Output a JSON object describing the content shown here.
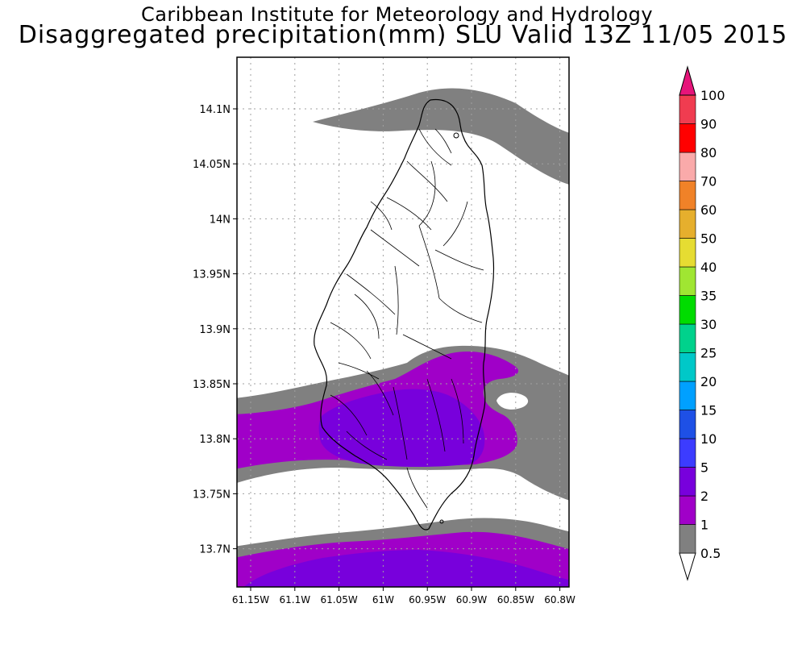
{
  "title": {
    "line1": "Caribbean Institute for Meteorology and Hydrology",
    "line2": "Disaggregated precipitation(mm) SLU Valid 13Z 11/05 2015"
  },
  "map": {
    "lat_labels": [
      "14.1N",
      "14.05N",
      "14N",
      "13.95N",
      "13.9N",
      "13.85N",
      "13.8N",
      "13.75N",
      "13.7N"
    ],
    "lon_labels": [
      "61.15W",
      "61.1W",
      "61.05W",
      "61W",
      "60.95W",
      "60.9W",
      "60.85W",
      "60.8W"
    ],
    "colors": {
      "gray": "#808080",
      "magenta": "#a000c8",
      "violet": "#7800dc"
    }
  },
  "legend": {
    "entries": [
      {
        "label": "0.5",
        "color": "#ffffff"
      },
      {
        "label": "1",
        "color": "#808080"
      },
      {
        "label": "2",
        "color": "#a000c8"
      },
      {
        "label": "5",
        "color": "#7800dc"
      },
      {
        "label": "10",
        "color": "#3c3cff"
      },
      {
        "label": "15",
        "color": "#1e50e6"
      },
      {
        "label": "20",
        "color": "#00a0ff"
      },
      {
        "label": "25",
        "color": "#00c8c8"
      },
      {
        "label": "30",
        "color": "#00d28c"
      },
      {
        "label": "35",
        "color": "#00dc00"
      },
      {
        "label": "40",
        "color": "#a0e632"
      },
      {
        "label": "50",
        "color": "#e6dc32"
      },
      {
        "label": "60",
        "color": "#e6af2d"
      },
      {
        "label": "70",
        "color": "#f08228"
      },
      {
        "label": "80",
        "color": "#faaaaa"
      },
      {
        "label": "90",
        "color": "#ff0000"
      },
      {
        "label": "100",
        "color": "#f03c50"
      }
    ],
    "top_arrow_color": "#e6147a"
  }
}
